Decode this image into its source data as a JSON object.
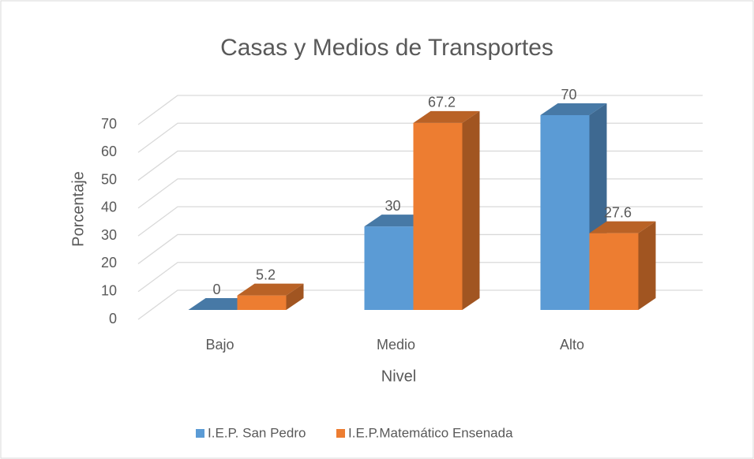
{
  "chart_data": {
    "type": "bar3d",
    "title": "Casas y Medios de Transportes",
    "x_label": "Nivel",
    "y_label": "Porcentaje",
    "categories": [
      "Bajo",
      "Medio",
      "Alto"
    ],
    "series": [
      {
        "name": "I.E.P. San Pedro",
        "color": "#5b9bd5",
        "values": [
          0,
          30,
          70
        ]
      },
      {
        "name": "I.E.P.Matemático Ensenada",
        "color": "#ed7d31",
        "values": [
          5.2,
          67.2,
          27.6
        ]
      }
    ],
    "ylim": [
      0,
      70
    ],
    "yticks": [
      0,
      10,
      20,
      30,
      40,
      50,
      60,
      70
    ],
    "grid": true,
    "legend": "bottom"
  }
}
